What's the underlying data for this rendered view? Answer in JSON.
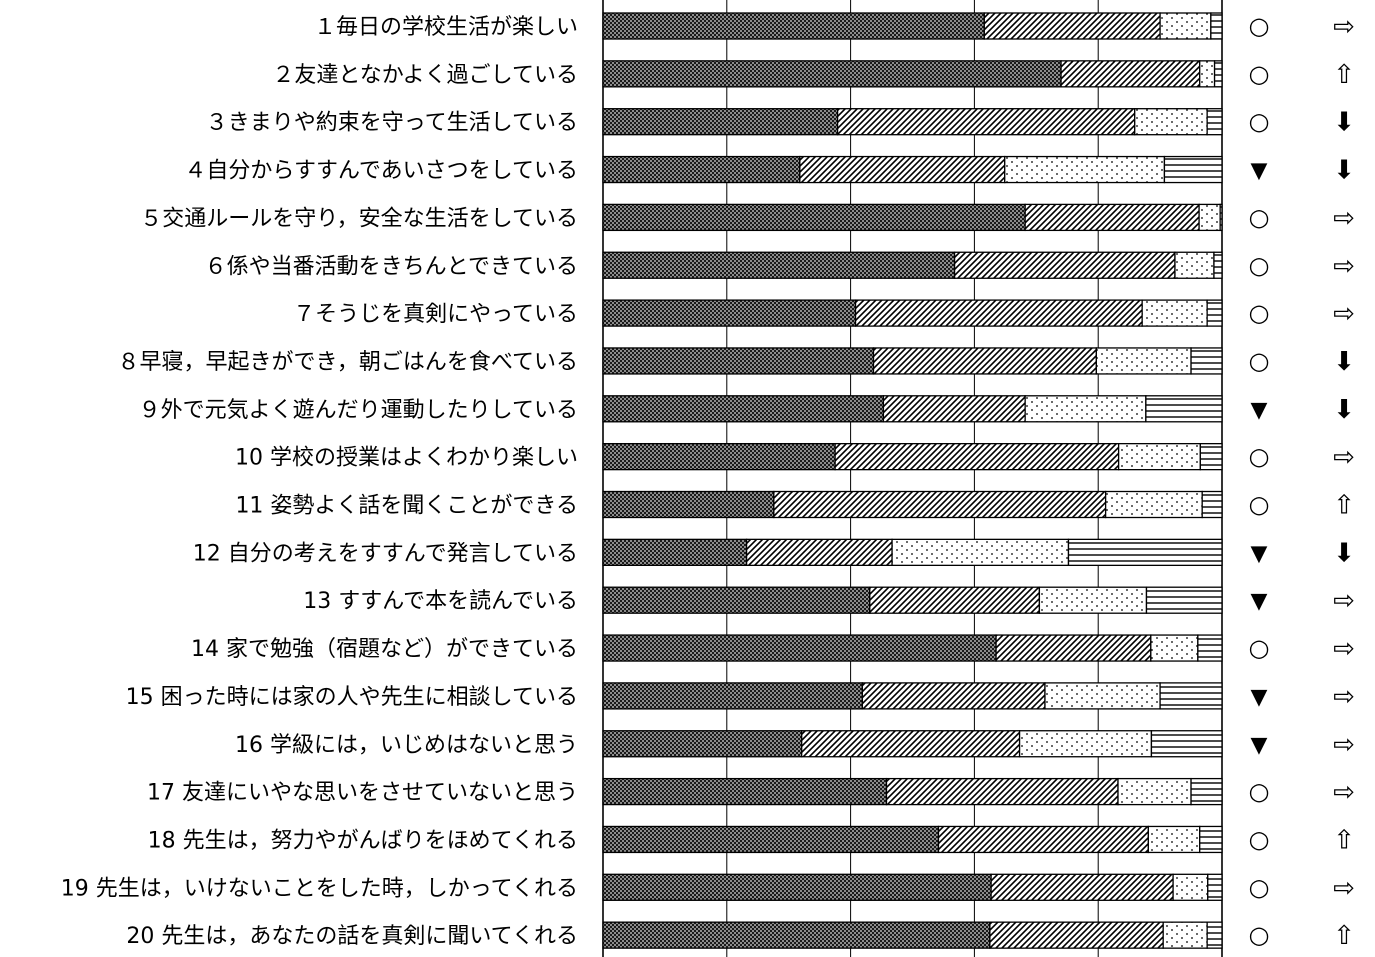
{
  "chart_data": {
    "type": "bar",
    "orientation": "horizontal",
    "stacked": true,
    "percent": true,
    "xlim": [
      0,
      100
    ],
    "grid": true,
    "categories": [
      "１毎日の学校生活が楽しい",
      "２友達となかよく過ごしている",
      "３きまりや約束を守って生活している",
      "４自分からすすんであいさつをしている",
      "５交通ルールを守り，安全な生活をしている",
      "６係や当番活動をきちんとできている",
      "７そうじを真剣にやっている",
      "８早寝，早起きができ，朝ごはんを食べている",
      "９外で元気よく遊んだり運動したりしている",
      "10 学校の授業はよくわかり楽しい",
      "11 姿勢よく話を聞くことができる",
      "12 自分の考えをすすんで発言している",
      "13 すすんで本を読んでいる",
      "14 家で勉強（宿題など）ができている",
      "15 困った時には家の人や先生に相談している",
      "16 学級には，いじめはないと思う",
      "17 友達にいやな思いをさせていないと思う",
      "18 先生は，努力やがんばりをほめてくれる",
      "19 先生は，いけないことをした時，しかってくれる",
      "20 先生は，あなたの話を真剣に聞いてくれる"
    ],
    "series": [
      {
        "pattern": "dense-dots",
        "values": [
          61.6,
          74.0,
          37.9,
          31.8,
          68.2,
          56.8,
          40.8,
          43.7,
          45.3,
          37.5,
          27.6,
          23.2,
          43.1,
          63.5,
          41.9,
          32.1,
          45.8,
          54.2,
          62.7,
          62.5
        ]
      },
      {
        "pattern": "diagonal-hatch",
        "values": [
          28.4,
          22.4,
          48.0,
          33.1,
          28.1,
          35.6,
          46.3,
          36.0,
          22.9,
          45.8,
          53.6,
          23.5,
          27.4,
          25.0,
          29.5,
          35.2,
          37.4,
          33.9,
          29.4,
          28.0
        ]
      },
      {
        "pattern": "sparse-dots",
        "values": [
          8.2,
          2.4,
          11.7,
          25.8,
          3.4,
          6.3,
          10.5,
          15.3,
          19.5,
          13.2,
          15.6,
          28.5,
          17.3,
          7.6,
          18.6,
          21.3,
          11.8,
          8.3,
          5.6,
          7.1
        ]
      },
      {
        "pattern": "horizontal-lines",
        "values": [
          1.8,
          1.2,
          2.4,
          9.3,
          0.3,
          1.3,
          2.4,
          5.0,
          12.3,
          3.5,
          3.2,
          24.8,
          12.2,
          3.9,
          10.0,
          11.4,
          5.0,
          3.6,
          2.3,
          2.4
        ]
      }
    ],
    "evaluation": [
      "○",
      "○",
      "○",
      "▼",
      "○",
      "○",
      "○",
      "○",
      "▼",
      "○",
      "○",
      "▼",
      "▼",
      "○",
      "▼",
      "▼",
      "○",
      "○",
      "○",
      "○"
    ],
    "trend": [
      "⇨",
      "⇧",
      "⬇",
      "⬇",
      "⇨",
      "⇨",
      "⇨",
      "⬇",
      "⬇",
      "⇨",
      "⇧",
      "⬇",
      "⇨",
      "⇨",
      "⇨",
      "⇨",
      "⇨",
      "⇧",
      "⇨",
      "⇧"
    ]
  }
}
